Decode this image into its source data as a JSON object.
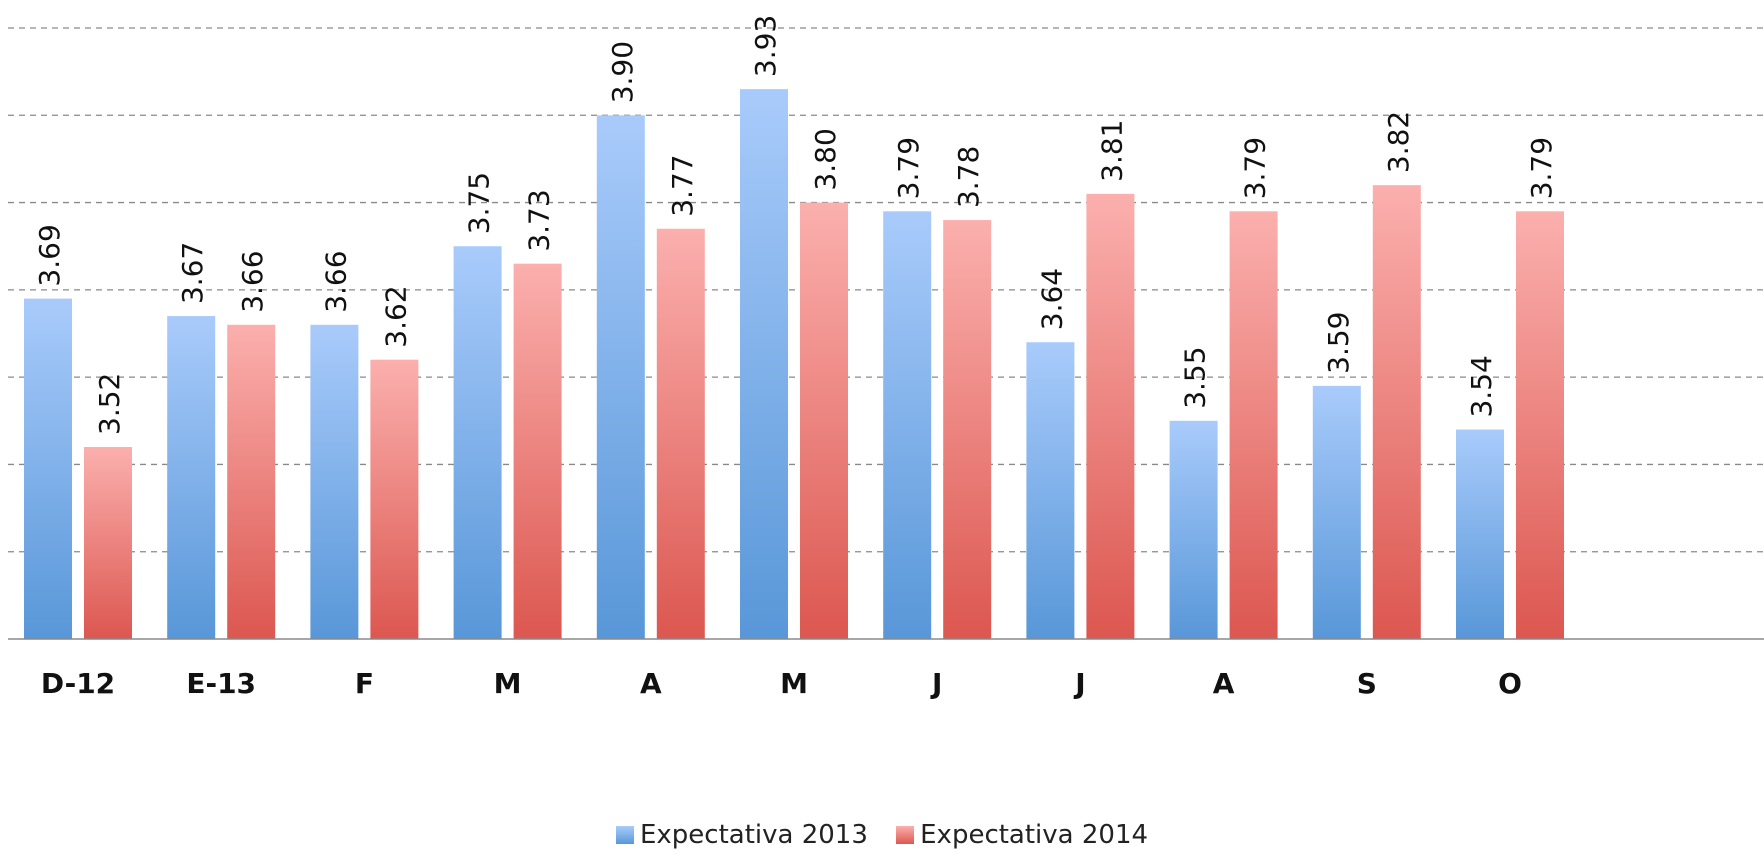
{
  "chart_data": {
    "type": "bar",
    "categories": [
      "D-12",
      "E-13",
      "F",
      "M",
      "A",
      "M",
      "J",
      "J",
      "A",
      "S",
      "O"
    ],
    "series": [
      {
        "name": "Expectativa 2013",
        "values": [
          3.69,
          3.67,
          3.66,
          3.75,
          3.9,
          3.93,
          3.79,
          3.64,
          3.55,
          3.59,
          3.54
        ],
        "color_top": "#a9cbfb",
        "color_bottom": "#5897d8"
      },
      {
        "name": "Expectativa 2014",
        "values": [
          3.52,
          3.66,
          3.62,
          3.73,
          3.77,
          3.8,
          3.78,
          3.81,
          3.79,
          3.82,
          3.79
        ],
        "color_top": "#fbb0ae",
        "color_bottom": "#dc5750"
      }
    ],
    "data_labels": [
      [
        "3.69",
        "3.67",
        "3.66",
        "3.75",
        "3.90",
        "3.93",
        "3.79",
        "3.64",
        "3.55",
        "3.59",
        "3.54"
      ],
      [
        "3.52",
        "3.66",
        "3.62",
        "3.73",
        "3.77",
        "3.80",
        "3.78",
        "3.81",
        "3.79",
        "3.82",
        "3.79"
      ]
    ],
    "ylim": [
      3.3,
      4.0
    ],
    "gridlines": [
      3.3,
      3.4,
      3.5,
      3.6,
      3.7,
      3.8,
      3.9,
      4.0
    ],
    "grid": true,
    "grid_style": "dashed",
    "legend_position": "bottom"
  }
}
